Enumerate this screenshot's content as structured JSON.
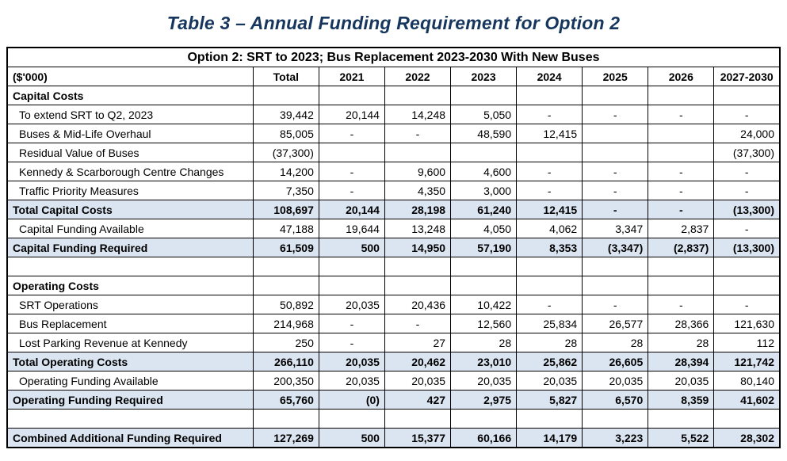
{
  "title": "Table 3  – Annual Funding Requirement for Option 2",
  "colors": {
    "title": "#17365D",
    "shaded_row": "#DBE5F1",
    "border": "#000000"
  },
  "table": {
    "caption": "Option 2: SRT to 2023; Bus Replacement 2023-2030 With New Buses",
    "columns": [
      "($'000)",
      "Total",
      "2021",
      "2022",
      "2023",
      "2024",
      "2025",
      "2026",
      "2027-2030"
    ],
    "rows": [
      {
        "label": "Capital Costs",
        "style": "section",
        "values": [
          "",
          "",
          "",
          "",
          "",
          "",
          "",
          ""
        ]
      },
      {
        "label": "To extend SRT to Q2, 2023",
        "style": "data",
        "values": [
          "39,442",
          "20,144",
          "14,248",
          "5,050",
          "-",
          "-",
          "-",
          "-"
        ]
      },
      {
        "label": "Buses & Mid-Life Overhaul",
        "style": "data",
        "values": [
          "85,005",
          "-",
          "-",
          "48,590",
          "12,415",
          "",
          "",
          "24,000"
        ]
      },
      {
        "label": "Residual Value of Buses",
        "style": "data",
        "values": [
          "(37,300)",
          "",
          "",
          "",
          "",
          "",
          "",
          "(37,300)"
        ]
      },
      {
        "label": "Kennedy & Scarborough Centre Changes",
        "style": "data",
        "values": [
          "14,200",
          "-",
          "9,600",
          "4,600",
          "-",
          "-",
          "-",
          "-"
        ]
      },
      {
        "label": "Traffic Priority Measures",
        "style": "data",
        "values": [
          "7,350",
          "-",
          "4,350",
          "3,000",
          "-",
          "-",
          "-",
          "-"
        ]
      },
      {
        "label": "Total Capital Costs",
        "style": "total",
        "values": [
          "108,697",
          "20,144",
          "28,198",
          "61,240",
          "12,415",
          "-",
          "-",
          "(13,300)"
        ]
      },
      {
        "label": "Capital Funding Available",
        "style": "data",
        "values": [
          "47,188",
          "19,644",
          "13,248",
          "4,050",
          "4,062",
          "3,347",
          "2,837",
          "-"
        ]
      },
      {
        "label": "Capital Funding Required",
        "style": "total",
        "values": [
          "61,509",
          "500",
          "14,950",
          "57,190",
          "8,353",
          "(3,347)",
          "(2,837)",
          "(13,300)"
        ]
      },
      {
        "label": "",
        "style": "spacer",
        "values": [
          "",
          "",
          "",
          "",
          "",
          "",
          "",
          ""
        ]
      },
      {
        "label": "Operating Costs",
        "style": "section",
        "values": [
          "",
          "",
          "",
          "",
          "",
          "",
          "",
          ""
        ]
      },
      {
        "label": "SRT Operations",
        "style": "data",
        "values": [
          "50,892",
          "20,035",
          "20,436",
          "10,422",
          "-",
          "-",
          "-",
          "-"
        ]
      },
      {
        "label": "Bus Replacement",
        "style": "data",
        "values": [
          "214,968",
          "-",
          "-",
          "12,560",
          "25,834",
          "26,577",
          "28,366",
          "121,630"
        ]
      },
      {
        "label": "Lost Parking Revenue at Kennedy",
        "style": "data",
        "values": [
          "250",
          "-",
          "27",
          "28",
          "28",
          "28",
          "28",
          "112"
        ]
      },
      {
        "label": "Total Operating Costs",
        "style": "total",
        "values": [
          "266,110",
          "20,035",
          "20,462",
          "23,010",
          "25,862",
          "26,605",
          "28,394",
          "121,742"
        ]
      },
      {
        "label": "Operating Funding Available",
        "style": "data",
        "values": [
          "200,350",
          "20,035",
          "20,035",
          "20,035",
          "20,035",
          "20,035",
          "20,035",
          "80,140"
        ]
      },
      {
        "label": "Operating Funding Required",
        "style": "total",
        "values": [
          "65,760",
          "(0)",
          "427",
          "2,975",
          "5,827",
          "6,570",
          "8,359",
          "41,602"
        ]
      },
      {
        "label": "",
        "style": "spacer",
        "values": [
          "",
          "",
          "",
          "",
          "",
          "",
          "",
          ""
        ]
      },
      {
        "label": "Combined Additional Funding Required",
        "style": "total",
        "values": [
          "127,269",
          "500",
          "15,377",
          "60,166",
          "14,179",
          "3,223",
          "5,522",
          "28,302"
        ]
      }
    ]
  }
}
